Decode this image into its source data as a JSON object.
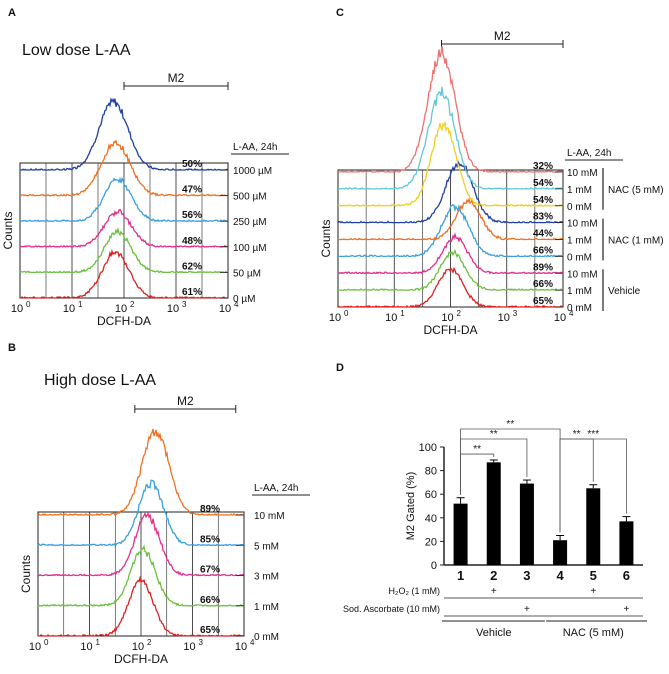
{
  "panels": {
    "A": {
      "letter": "A",
      "title": "Low dose L-AA",
      "gate_label": "M2",
      "legend_header": "L-AA, 24h",
      "ylabel": "Counts",
      "xlabel": "DCFH-DA",
      "x_ticks": [
        {
          "base": "10",
          "exp": "0"
        },
        {
          "base": "10",
          "exp": "1"
        },
        {
          "base": "10",
          "exp": "2"
        },
        {
          "base": "10",
          "exp": "3"
        },
        {
          "base": "10",
          "exp": "4"
        }
      ],
      "rows": [
        {
          "condition": "1000 µM",
          "percent": "50%",
          "color": "#1f3fa0"
        },
        {
          "condition": "500 µM",
          "percent": "47%",
          "color": "#f07020"
        },
        {
          "condition": "250 µM",
          "percent": "56%",
          "color": "#3aa0e0"
        },
        {
          "condition": "100 µM",
          "percent": "48%",
          "color": "#e0308a"
        },
        {
          "condition": "50 µM",
          "percent": "62%",
          "color": "#6cc040"
        },
        {
          "condition": "0 µM",
          "percent": "61%",
          "color": "#e02020"
        }
      ]
    },
    "B": {
      "letter": "B",
      "title": "High dose L-AA",
      "gate_label": "M2",
      "legend_header": "L-AA, 24h",
      "ylabel": "Counts",
      "xlabel": "DCFH-DA",
      "x_ticks": [
        {
          "base": "10",
          "exp": "0"
        },
        {
          "base": "10",
          "exp": "1"
        },
        {
          "base": "10",
          "exp": "2"
        },
        {
          "base": "10",
          "exp": "3"
        },
        {
          "base": "10",
          "exp": "4"
        }
      ],
      "rows": [
        {
          "condition": "10 mM",
          "percent": "89%",
          "color": "#f07020"
        },
        {
          "condition": "5 mM",
          "percent": "85%",
          "color": "#3aa0e0"
        },
        {
          "condition": "3 mM",
          "percent": "67%",
          "color": "#e0308a"
        },
        {
          "condition": "1 mM",
          "percent": "66%",
          "color": "#6cc040"
        },
        {
          "condition": "0 mM",
          "percent": "65%",
          "color": "#e02020"
        }
      ]
    },
    "C": {
      "letter": "C",
      "title": "",
      "gate_label": "M2",
      "legend_header": "L-AA, 24h",
      "ylabel": "Counts",
      "xlabel": "DCFH-DA",
      "x_ticks": [
        {
          "base": "10",
          "exp": "0"
        },
        {
          "base": "10",
          "exp": "1"
        },
        {
          "base": "10",
          "exp": "2"
        },
        {
          "base": "10",
          "exp": "3"
        },
        {
          "base": "10",
          "exp": "4"
        }
      ],
      "rows": [
        {
          "condition": "10 mM",
          "percent": "32%",
          "color": "#f07070"
        },
        {
          "condition": "1 mM",
          "percent": "54%",
          "color": "#60c8d8"
        },
        {
          "condition": "0 mM",
          "percent": "54%",
          "color": "#f0d020"
        },
        {
          "condition": "10 mM",
          "percent": "83%",
          "color": "#1f3fa0"
        },
        {
          "condition": "1 mM",
          "percent": "44%",
          "color": "#f07020"
        },
        {
          "condition": "0 mM",
          "percent": "66%",
          "color": "#3aa0e0"
        },
        {
          "condition": "10 mM",
          "percent": "89%",
          "color": "#e0308a"
        },
        {
          "condition": "1 mM",
          "percent": "66%",
          "color": "#6cc040"
        },
        {
          "condition": "0 mM",
          "percent": "65%",
          "color": "#e02020"
        }
      ],
      "groups": [
        "NAC (5 mM)",
        "NAC (1 mM)",
        "Vehicle"
      ]
    },
    "D": {
      "letter": "D",
      "ylabel": "M2 Gated (%)",
      "y_ticks": [
        "0",
        "20",
        "40",
        "60",
        "80",
        "100"
      ],
      "significance": [
        "**",
        "**",
        "**",
        "**",
        "***"
      ],
      "row_labels": {
        "h2o2": "H₂O₂ (1 mM)",
        "ascorbate": "Sod. Ascorbate (10 mM)"
      },
      "plus": "+",
      "groups": [
        "Vehicle",
        "NAC (5 mM)"
      ]
    }
  },
  "chart_data": [
    {
      "type": "histogram-overlay",
      "panel": "A",
      "title": "Low dose L-AA",
      "xlabel": "DCFH-DA",
      "ylabel": "Counts",
      "x_scale": "log",
      "xlim": [
        1,
        10000
      ],
      "gate": "M2",
      "series": [
        {
          "name": "1000 µM",
          "m2_percent": 50
        },
        {
          "name": "500 µM",
          "m2_percent": 47
        },
        {
          "name": "250 µM",
          "m2_percent": 56
        },
        {
          "name": "100 µM",
          "m2_percent": 48
        },
        {
          "name": "50 µM",
          "m2_percent": 62
        },
        {
          "name": "0 µM",
          "m2_percent": 61
        }
      ]
    },
    {
      "type": "histogram-overlay",
      "panel": "B",
      "title": "High dose L-AA",
      "xlabel": "DCFH-DA",
      "ylabel": "Counts",
      "x_scale": "log",
      "xlim": [
        1,
        10000
      ],
      "gate": "M2",
      "series": [
        {
          "name": "10 mM",
          "m2_percent": 89
        },
        {
          "name": "5 mM",
          "m2_percent": 85
        },
        {
          "name": "3 mM",
          "m2_percent": 67
        },
        {
          "name": "1 mM",
          "m2_percent": 66
        },
        {
          "name": "0 mM",
          "m2_percent": 65
        }
      ]
    },
    {
      "type": "histogram-overlay",
      "panel": "C",
      "xlabel": "DCFH-DA",
      "ylabel": "Counts",
      "x_scale": "log",
      "xlim": [
        1,
        10000
      ],
      "gate": "M2",
      "series": [
        {
          "name": "10 mM",
          "group": "NAC (5 mM)",
          "m2_percent": 32
        },
        {
          "name": "1 mM",
          "group": "NAC (5 mM)",
          "m2_percent": 54
        },
        {
          "name": "0 mM",
          "group": "NAC (5 mM)",
          "m2_percent": 54
        },
        {
          "name": "10 mM",
          "group": "NAC (1 mM)",
          "m2_percent": 83
        },
        {
          "name": "1 mM",
          "group": "NAC (1 mM)",
          "m2_percent": 44
        },
        {
          "name": "0 mM",
          "group": "NAC (1 mM)",
          "m2_percent": 66
        },
        {
          "name": "10 mM",
          "group": "Vehicle",
          "m2_percent": 89
        },
        {
          "name": "1 mM",
          "group": "Vehicle",
          "m2_percent": 66
        },
        {
          "name": "0 mM",
          "group": "Vehicle",
          "m2_percent": 65
        }
      ]
    },
    {
      "type": "bar",
      "panel": "D",
      "categories": [
        "1",
        "2",
        "3",
        "4",
        "5",
        "6"
      ],
      "values": [
        52,
        87,
        69,
        21,
        65,
        37
      ],
      "errors": [
        5,
        2,
        3,
        4,
        3,
        4
      ],
      "ylabel": "M2 Gated (%)",
      "ylim": [
        0,
        100
      ],
      "h2o2": [
        "",
        "+",
        "",
        "",
        "+",
        ""
      ],
      "ascorbate": [
        "",
        "",
        "+",
        "",
        "",
        "+"
      ],
      "group": [
        "Vehicle",
        "Vehicle",
        "Vehicle",
        "NAC (5 mM)",
        "NAC (5 mM)",
        "NAC (5 mM)"
      ],
      "comparisons": [
        {
          "from": "1",
          "to": "2",
          "label": "**"
        },
        {
          "from": "1",
          "to": "3",
          "label": "**"
        },
        {
          "from": "1",
          "to": "4",
          "label": "**"
        },
        {
          "from": "4",
          "to": "5",
          "label": "**"
        },
        {
          "from": "4",
          "to": "6",
          "label": "***"
        }
      ]
    }
  ]
}
